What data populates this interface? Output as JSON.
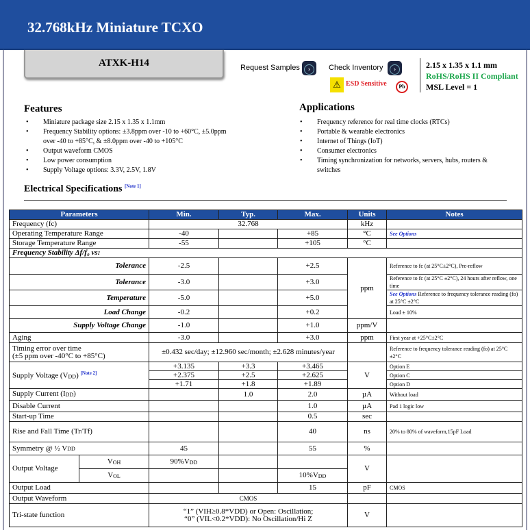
{
  "title": "32.768kHz Miniature TCXO",
  "part_number": "ATXK-H14",
  "actions": {
    "request_samples": "Request Samples",
    "check_inventory": "Check Inventory"
  },
  "badges": {
    "esd": "ESD Sensitive",
    "pb": "Pb"
  },
  "specs": {
    "size": "2.15 x 1.35 x 1.1 mm",
    "rohs": "RoHS/RoHS II Compliant",
    "msl": "MSL Level = 1"
  },
  "features": {
    "title": "Features",
    "items": [
      "Miniature package size 2.15 x 1.35 x 1.1mm",
      "Frequency Stability options: ±3.8ppm over -10 to +60°C, ±5.0ppm over -40 to +85°C, & ±8.0ppm over -40 to +105°C",
      "Output waveform CMOS",
      "Low power consumption",
      "Supply Voltage options: 3.3V, 2.5V, 1.8V"
    ]
  },
  "applications": {
    "title": "Applications",
    "items": [
      "Frequency reference for real time clocks (RTCs)",
      "Portable & wearable electronics",
      "Internet of Things (IoT)",
      "Consumer electronics",
      "Timing synchronization for networks, servers, hubs, routers & switches"
    ]
  },
  "elec": {
    "title": "Electrical Specifications",
    "note": "[Note 1]"
  },
  "table": {
    "headers": [
      "Parameters",
      "Min.",
      "Typ.",
      "Max.",
      "Units",
      "Notes"
    ],
    "freq": [
      "Frequency (fc)",
      "32.768",
      "kHz"
    ],
    "optemp": [
      "Operating Temperature Range",
      "-40",
      "+85",
      "°C",
      "See Options"
    ],
    "stortemp": [
      "Storage Temperature Range",
      "-55",
      "+105",
      "°C"
    ],
    "stab": "Frequency Stability Δf/f₀ vs:",
    "tol1": [
      "Tolerance",
      "-2.5",
      "+2.5",
      "ppm",
      "Reference to fc (at 25°C±2°C), Pre-reflow"
    ],
    "tol2": [
      "Tolerance",
      "-3.0",
      "+3.0",
      "Reference to fc (at 25°C ±2°C), 24 hours after reflow, one time"
    ],
    "temp": [
      "Temperature",
      "-5.0",
      "+5.0",
      "See Options",
      " Reference to frequency tolerance reading (fo) at 25°C ±2°C"
    ],
    "load": [
      "Load Change",
      "-0.2",
      "+0.2",
      "Load ± 10%"
    ],
    "svc": [
      "Supply Voltage Change",
      "-1.0",
      "+1.0",
      "ppm/V"
    ],
    "aging": [
      "Aging",
      "-3.0",
      "+3.0",
      "ppm",
      "First year at +25°C±2°C"
    ],
    "timing": [
      "Timing error over time",
      "(±5 ppm over -40°C to +85°C)",
      "±0.432 sec/day; ±12.960 sec/month; ±2.628 minutes/year",
      "Reference to frequency tolerance reading (fo) at 25°C ±2°C"
    ],
    "supply": {
      "label": "Supply Voltage (V",
      "sub": "DD",
      ")": ")",
      "note": "[Note 2]",
      "unit": "V",
      "rows": [
        [
          "+3.135",
          "+3.3",
          "+3.465",
          "Option E"
        ],
        [
          "+2.375",
          "+2.5",
          "+2.625",
          "Option C"
        ],
        [
          "+1.71",
          "+1.8",
          "+1.89",
          "Option D"
        ]
      ]
    },
    "current": [
      "Supply Current (I",
      "DD",
      ")",
      "1.0",
      "2.0",
      "µA",
      "Without load"
    ],
    "disable": [
      "Disable Current",
      "1.0",
      "µA",
      "Pad 1 logic low"
    ],
    "startup": [
      "Start-up Time",
      "0.5",
      "sec"
    ],
    "rise": [
      "Rise and Fall Time (Tr/Tf)",
      "40",
      "ns",
      "20% to 80% of waveform,15pF Load"
    ],
    "sym": [
      "Symmetry @ ½ V",
      "DD",
      "45",
      "55",
      "%"
    ],
    "outv": {
      "label": "Output Voltage",
      "voh": "V",
      "voh_sub": "OH",
      "vol": "V",
      "vol_sub": "OL",
      "min": "90%V",
      "max": "10%V",
      "sub": "DD",
      "unit": "V"
    },
    "outload": [
      "Output Load",
      "15",
      "pF",
      "CMOS"
    ],
    "wave": [
      "Output Waveform",
      "CMOS"
    ],
    "tri": [
      "Tri-state function",
      "“1” (VIH≥0.8*VDD) or Open: Oscillation;",
      "“0” (VIL<0.2*VDD): No Oscillation/Hi Z",
      "V"
    ]
  }
}
